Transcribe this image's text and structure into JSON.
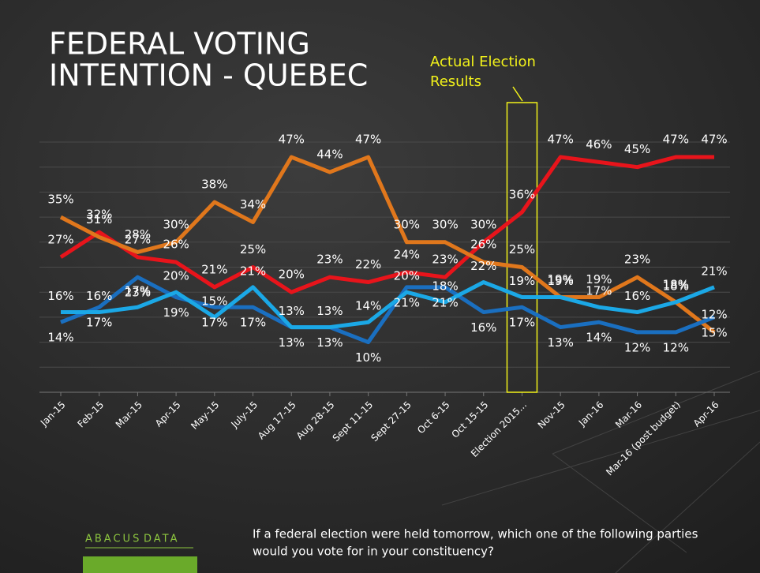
{
  "chart_data": {
    "type": "line",
    "title_lines": [
      "FEDERAL VOTING",
      "INTENTION - QUEBEC"
    ],
    "annotation_lines": [
      "Actual Election",
      "Results"
    ],
    "highlight_category": 12,
    "footnote_lines": [
      "If a federal election were held tomorrow, which one of the following parties",
      "would you vote for in your constituency?"
    ],
    "logo": [
      "ABACUS",
      "DATA"
    ],
    "categories": [
      "Jan-15",
      "Feb-15",
      "Mar-15",
      "Apr-15",
      "May-15",
      "July-15",
      "Aug 17-15",
      "Aug 28-15",
      "Sept 11-15",
      "Sept 27-15",
      "Oct 6-15",
      "Oct 15-15",
      "Election 2015...",
      "Nov-15",
      "Jan-16",
      "Mar-16",
      "Mar-16 (post budget)",
      "Apr-16"
    ],
    "series": [
      {
        "color": "#e8141b",
        "values": [
          27,
          32,
          27,
          26,
          21,
          25,
          20,
          23,
          22,
          24,
          23,
          30,
          36,
          47,
          46,
          45,
          47,
          47
        ],
        "value_labels": [
          "27%",
          "32%",
          "27%",
          "26%",
          "21%",
          "25%",
          "20%",
          "23%",
          "22%",
          "24%",
          "23%",
          "30%",
          "36%",
          "47%",
          "46%",
          "45%",
          "47%",
          "47%"
        ]
      },
      {
        "color": "#e0771c",
        "values": [
          35,
          31,
          28,
          30,
          38,
          34,
          47,
          44,
          47,
          30,
          30,
          26,
          25,
          19,
          19,
          23,
          18,
          12
        ],
        "value_labels": [
          "35%",
          "31%",
          "28%",
          "30%",
          "38%",
          "34%",
          "47%",
          "44%",
          "47%",
          "30%",
          "30%",
          "26%",
          "25%",
          "19%",
          "19%",
          "23%",
          "18%",
          "12%"
        ]
      },
      {
        "color": "#1a6fc0",
        "values": [
          14,
          17,
          23,
          19,
          17,
          17,
          13,
          13,
          10,
          21,
          21,
          16,
          17,
          13,
          14,
          12,
          12,
          15
        ],
        "value_labels": [
          "14%",
          "17%",
          "23%",
          "19%",
          "17%",
          "17%",
          "13%",
          "13%",
          "10%",
          "21%",
          "21%",
          "16%",
          "17%",
          "13%",
          "14%",
          "12%",
          "12%",
          "15%"
        ]
      },
      {
        "color": "#1ba8e6",
        "values": [
          16,
          16,
          17,
          20,
          15,
          21,
          13,
          13,
          14,
          20,
          18,
          22,
          19,
          19,
          17,
          16,
          18,
          21
        ],
        "value_labels": [
          "16%",
          "16%",
          "17%",
          "20%",
          "15%",
          "21%",
          "13%",
          "13%",
          "14%",
          "20%",
          "18%",
          "22%",
          "19%",
          "19%",
          "17%",
          "16%",
          "18%",
          "21%"
        ]
      }
    ],
    "ylim": [
      0,
      50
    ],
    "yticks": [
      0,
      5,
      10,
      15,
      20,
      25,
      30,
      35,
      40,
      45,
      50
    ],
    "grid": true
  }
}
